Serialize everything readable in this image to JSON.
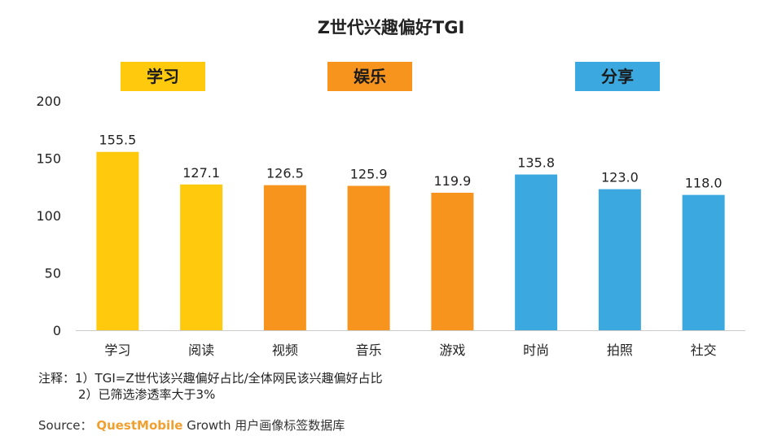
{
  "colors": {
    "learning": "#ffc90e",
    "entertainment": "#f7941d",
    "sharing": "#3ba9e0",
    "axis": "#cccccc",
    "brand": "#f0a030"
  },
  "groups": [
    {
      "label": "学习",
      "color": "#ffc90e"
    },
    {
      "label": "娱乐",
      "color": "#f7941d"
    },
    {
      "label": "分享",
      "color": "#3ba9e0"
    }
  ],
  "chart_data": {
    "type": "bar",
    "title": "Z世代兴趣偏好TGI",
    "categories": [
      "学习",
      "阅读",
      "视频",
      "音乐",
      "游戏",
      "时尚",
      "拍照",
      "社交"
    ],
    "values": [
      155.5,
      127.1,
      126.5,
      125.9,
      119.9,
      135.8,
      123.0,
      118.0
    ],
    "value_labels": [
      "155.5",
      "127.1",
      "126.5",
      "125.9",
      "119.9",
      "135.8",
      "123.0",
      "118.0"
    ],
    "bar_colors": [
      "#ffc90e",
      "#ffc90e",
      "#f7941d",
      "#f7941d",
      "#f7941d",
      "#3ba9e0",
      "#3ba9e0",
      "#3ba9e0"
    ],
    "ylim": [
      0,
      200
    ],
    "yticks": [
      0,
      50,
      100,
      150,
      200
    ],
    "grid": false,
    "xlabel": "",
    "ylabel": ""
  },
  "notes": {
    "line1": "注释：1）TGI=Z世代该兴趣偏好占比/全体网民该兴趣偏好占比",
    "line2": "2）已筛选渗透率大于3%"
  },
  "source": {
    "prefix": "Source：",
    "brand": "QuestMobile",
    "rest": "Growth 用户画像标签数据库"
  }
}
